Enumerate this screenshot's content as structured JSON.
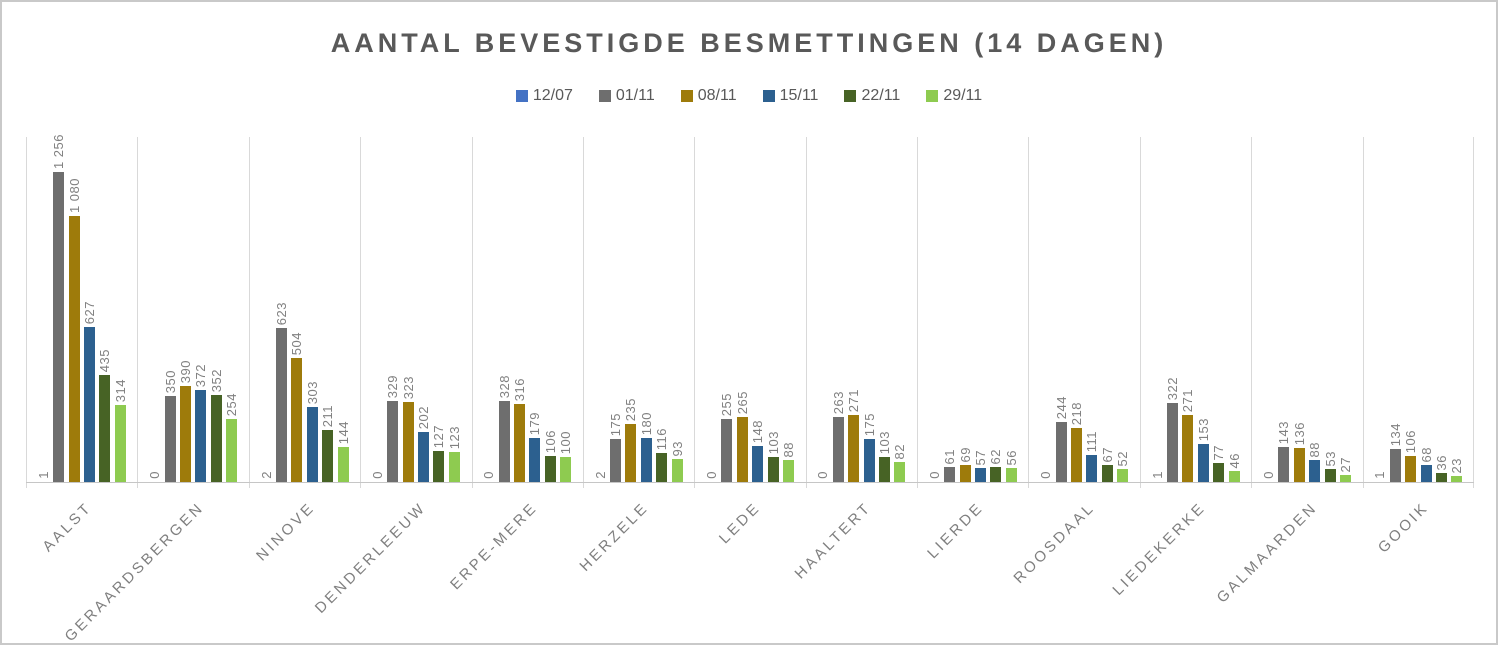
{
  "chart_data": {
    "type": "bar",
    "title": "AANTAL BEVESTIGDE BESMETTINGEN (14 DAGEN)",
    "xlabel": "",
    "ylabel": "",
    "ylim": [
      0,
      1400
    ],
    "grid": "vertical category separators only, no horizontal gridlines, no y-axis labels",
    "legend_position": "top",
    "value_labels": "rotated 90deg above each bar, thousands separated by space",
    "category_label_style": "rotated 45deg, uppercase, letter-spaced",
    "categories": [
      "AALST",
      "GERAARDSBERGEN",
      "NINOVE",
      "DENDERLEEUW",
      "ERPE-MERE",
      "HERZELE",
      "LEDE",
      "HAALTERT",
      "LIERDE",
      "ROOSDAAL",
      "LIEDEKERKE",
      "GALMAARDEN",
      "GOOIK"
    ],
    "series": [
      {
        "name": "12/07",
        "color": "#4472C4",
        "values": [
          1,
          0,
          2,
          0,
          0,
          2,
          0,
          0,
          0,
          0,
          1,
          0,
          1
        ]
      },
      {
        "name": "01/11",
        "color": "#6E6E6E",
        "values": [
          1256,
          350,
          623,
          329,
          328,
          175,
          255,
          263,
          61,
          244,
          322,
          143,
          134
        ]
      },
      {
        "name": "08/11",
        "color": "#9E7B0B",
        "values": [
          1080,
          390,
          504,
          323,
          316,
          235,
          265,
          271,
          69,
          218,
          271,
          136,
          106
        ]
      },
      {
        "name": "15/11",
        "color": "#2C608F",
        "values": [
          627,
          372,
          303,
          202,
          179,
          180,
          148,
          175,
          57,
          111,
          153,
          88,
          68
        ]
      },
      {
        "name": "22/11",
        "color": "#476325",
        "values": [
          435,
          352,
          211,
          127,
          106,
          116,
          103,
          103,
          62,
          67,
          77,
          53,
          36
        ]
      },
      {
        "name": "29/11",
        "color": "#8ECB50",
        "values": [
          314,
          254,
          144,
          123,
          100,
          93,
          88,
          82,
          56,
          52,
          46,
          27,
          23
        ]
      }
    ]
  },
  "colors": {
    "frame_border": "#c9c9c9",
    "gridline": "#d9d9d9",
    "axis_line": "#c6c6c6",
    "title_text": "#595959",
    "legend_text": "#595959",
    "value_label_text": "#808080",
    "category_label_text": "#7f7f7f",
    "background": "#ffffff"
  }
}
